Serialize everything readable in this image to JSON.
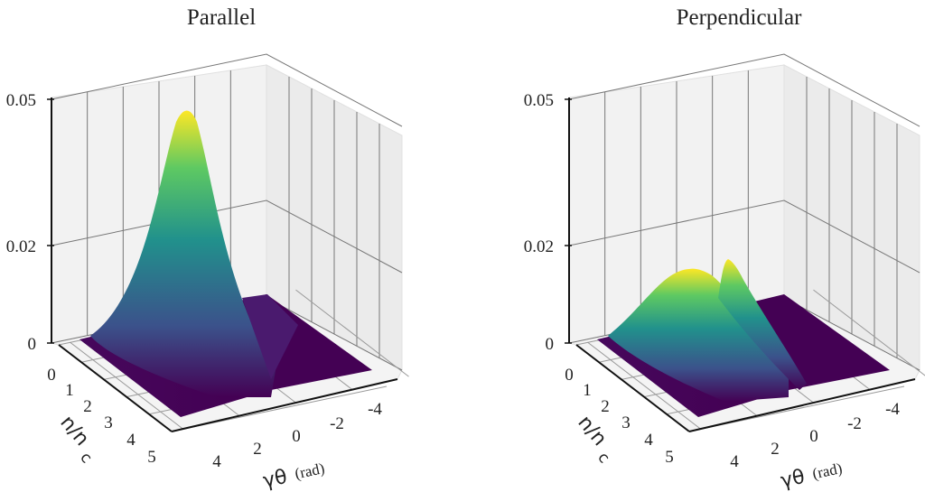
{
  "chart_data": [
    {
      "type": "surface",
      "title": "Parallel",
      "xlabel": "γθ (rad)",
      "ylabel": "n/n_c",
      "ylabel_main": "n/n",
      "ylabel_sub": "c",
      "xlabel_main": "γθ",
      "xlabel_unit": "(rad)",
      "x_ticks": [
        "4",
        "2",
        "0",
        "-2",
        "-4"
      ],
      "y_ticks": [
        "0",
        "1",
        "2",
        "3",
        "4",
        "5"
      ],
      "z_ticks": [
        {
          "value": 0,
          "label": "0"
        },
        {
          "value": 0.02,
          "label": "0.02"
        },
        {
          "value": 0.05,
          "label": "0.05"
        }
      ],
      "zlim": [
        0,
        0.05
      ],
      "colormap": "viridis",
      "peaks": [
        {
          "gamma_theta": 0,
          "n_over_nc": 0,
          "value": 0.048
        }
      ]
    },
    {
      "type": "surface",
      "title": "Perpendicular",
      "xlabel": "γθ (rad)",
      "ylabel": "n/n_c",
      "ylabel_main": "n/n",
      "ylabel_sub": "c",
      "xlabel_main": "γθ",
      "xlabel_unit": "(rad)",
      "x_ticks": [
        "4",
        "2",
        "0",
        "-2",
        "-4"
      ],
      "y_ticks": [
        "0",
        "1",
        "2",
        "3",
        "4",
        "5"
      ],
      "z_ticks": [
        {
          "value": 0,
          "label": "0"
        },
        {
          "value": 0.02,
          "label": "0.02"
        },
        {
          "value": 0.05,
          "label": "0.05"
        }
      ],
      "zlim": [
        0,
        0.05
      ],
      "colormap": "viridis",
      "peaks": [
        {
          "gamma_theta": 1,
          "n_over_nc": 0,
          "value": 0.022
        },
        {
          "gamma_theta": -1,
          "n_over_nc": 0,
          "value": 0.022
        }
      ]
    }
  ],
  "colors": {
    "dark": "#440154",
    "mid": "#3b528b",
    "teal": "#21918c",
    "green": "#5ec962",
    "yellow": "#fde725"
  }
}
